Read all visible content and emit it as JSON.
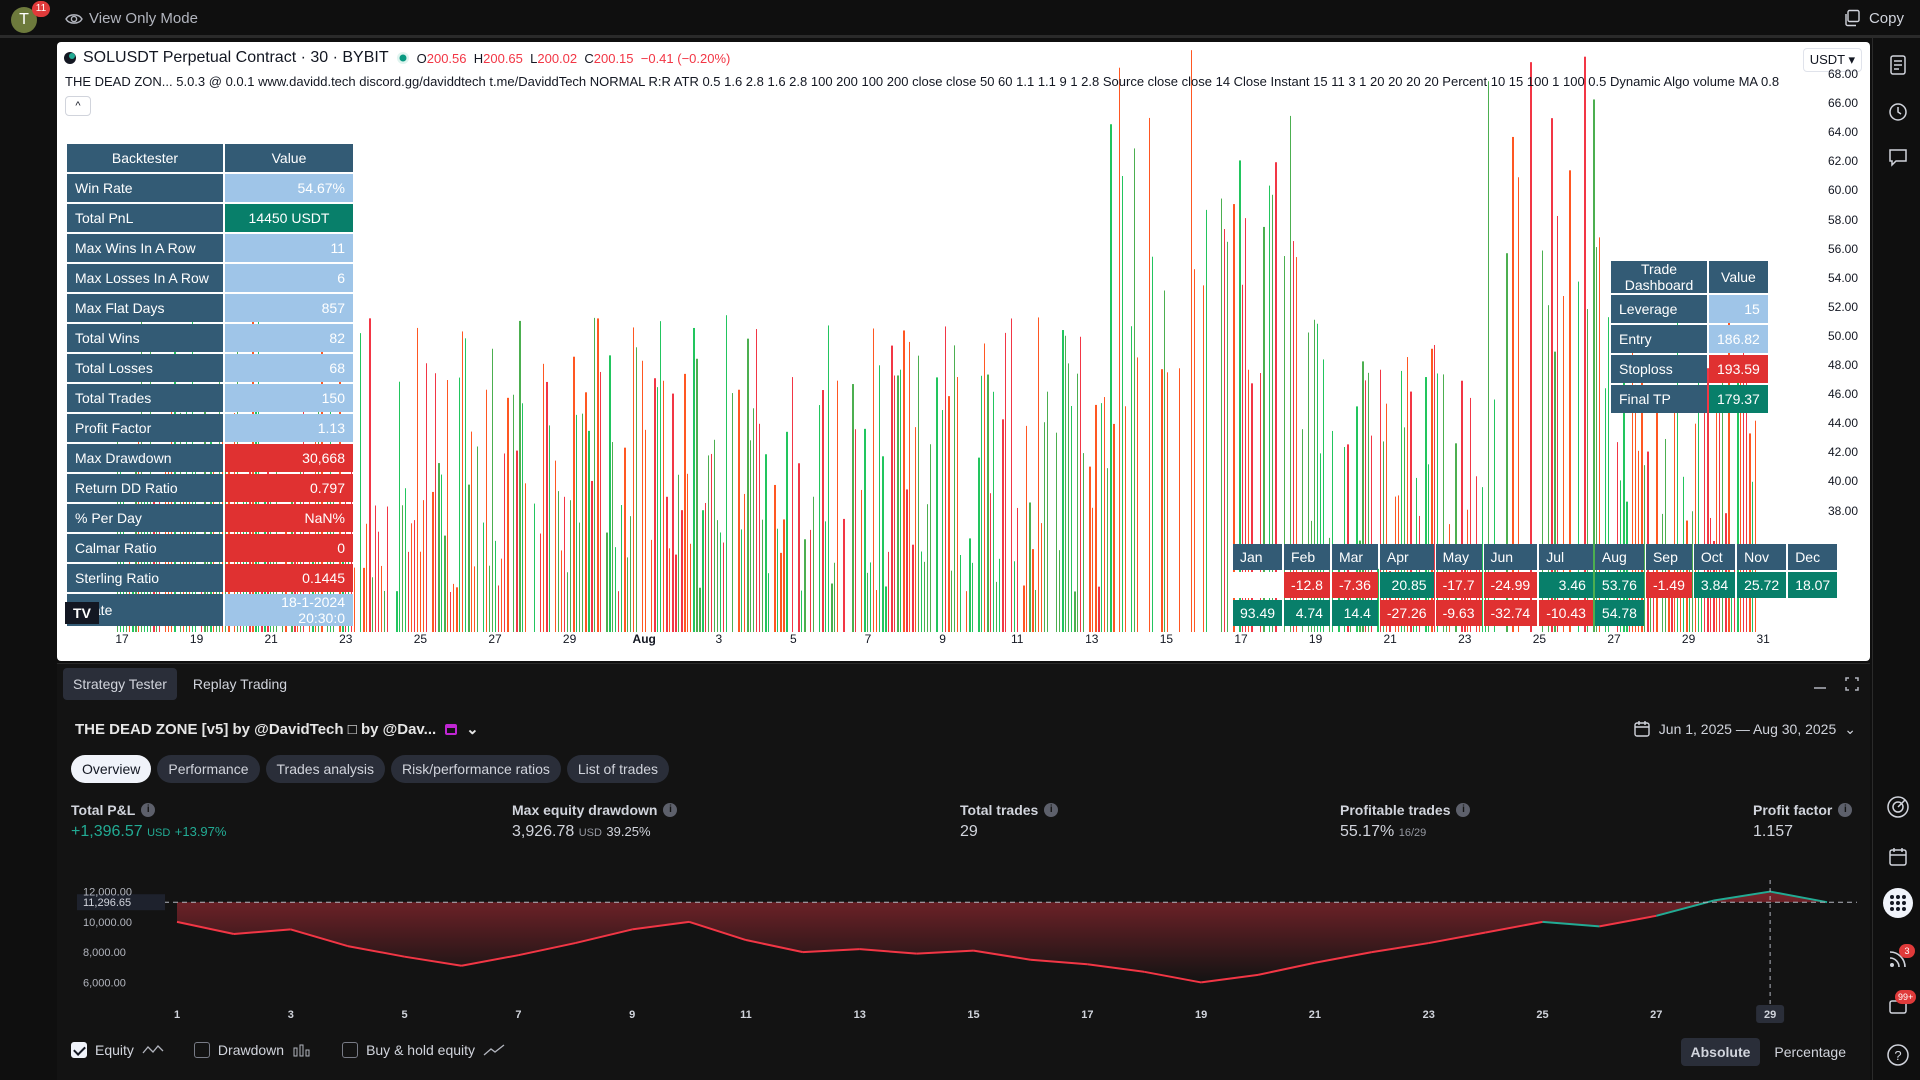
{
  "topbar": {
    "avatar_letter": "T",
    "avatar_badge": "11",
    "view_mode": "View Only Mode",
    "copy_label": "Copy"
  },
  "chart": {
    "symbol": "SOLUSDT Perpetual Contract · 30 · BYBIT",
    "ohlc": {
      "o_label": "O",
      "o": "200.56",
      "h_label": "H",
      "h": "200.65",
      "l_label": "L",
      "l": "200.02",
      "c_label": "C",
      "c": "200.15",
      "change": "−0.41 (−0.20%)"
    },
    "indicator_line": "THE DEAD ZON...    5.0.3 @ 0.0.1 www.davidd.tech discord.gg/daviddtech t.me/DaviddTech NORMAL R:R ATR 0.5 1.6 2.8 1.6 2.8 100 200 100 200 close close 50 60 1.1 1.1 9 1 2.8 Source close close 14 Close Instant 15 11 3 1 20 20 20 20 Percent 10 15 100 1 100 0.5 Dynamic Algo volume MA 0.8",
    "collapse_glyph": "^",
    "currency": "USDT",
    "y_ticks": [
      "68.00",
      "66.00",
      "64.00",
      "62.00",
      "60.00",
      "58.00",
      "56.00",
      "54.00",
      "52.00",
      "50.00",
      "48.00",
      "46.00",
      "44.00",
      "42.00",
      "40.00",
      "38.00"
    ],
    "x_ticks": [
      "17",
      "19",
      "21",
      "23",
      "25",
      "27",
      "29",
      "Aug",
      "3",
      "5",
      "7",
      "9",
      "11",
      "13",
      "15",
      "17",
      "19",
      "21",
      "23",
      "25",
      "27",
      "29",
      "31"
    ],
    "logo_text": "TV"
  },
  "backtester": {
    "headers": [
      "Backtester",
      "Value"
    ],
    "rows": [
      {
        "label": "Win Rate",
        "value": "54.67%",
        "color": "blue"
      },
      {
        "label": "Total PnL",
        "value": "14450 USDT",
        "color": "green"
      },
      {
        "label": "Max Wins In A Row",
        "value": "11",
        "color": "blue"
      },
      {
        "label": "Max Losses In A Row",
        "value": "6",
        "color": "blue"
      },
      {
        "label": "Max Flat Days",
        "value": "857",
        "color": "blue"
      },
      {
        "label": "Total Wins",
        "value": "82",
        "color": "blue"
      },
      {
        "label": "Total Losses",
        "value": "68",
        "color": "blue"
      },
      {
        "label": "Total Trades",
        "value": "150",
        "color": "blue"
      },
      {
        "label": "Profit Factor",
        "value": "1.13",
        "color": "blue"
      },
      {
        "label": "Max Drawdown",
        "value": "30,668",
        "color": "red"
      },
      {
        "label": "Return DD Ratio",
        "value": "0.797",
        "color": "red"
      },
      {
        "label": "% Per Day",
        "value": "NaN%",
        "color": "red"
      },
      {
        "label": "Calmar Ratio",
        "value": "0",
        "color": "red"
      },
      {
        "label": "Sterling Ratio",
        "value": "0.1445",
        "color": "red"
      },
      {
        "label": "t Date",
        "value": "18-1-2024 20:30:0",
        "color": "blue"
      }
    ]
  },
  "trade_dashboard": {
    "headers": [
      "Trade Dashboard",
      "Value"
    ],
    "rows": [
      {
        "label": "Leverage",
        "value": "15",
        "color": "blue"
      },
      {
        "label": "Entry",
        "value": "186.82",
        "color": "blue"
      },
      {
        "label": "Stoploss",
        "value": "193.59",
        "color": "red"
      },
      {
        "label": "Final TP",
        "value": "179.37",
        "color": "green"
      }
    ]
  },
  "monthly": {
    "months": [
      "Jan",
      "Feb",
      "Mar",
      "Apr",
      "May",
      "Jun",
      "Jul",
      "Aug",
      "Sep",
      "Oct",
      "Nov",
      "Dec"
    ],
    "row1": [
      {
        "v": "",
        "c": "white"
      },
      {
        "v": "-12.8",
        "c": "red"
      },
      {
        "v": "-7.36",
        "c": "red"
      },
      {
        "v": "20.85",
        "c": "green"
      },
      {
        "v": "-17.7",
        "c": "red"
      },
      {
        "v": "-24.99",
        "c": "red"
      },
      {
        "v": "3.46",
        "c": "green"
      },
      {
        "v": "53.76",
        "c": "green"
      },
      {
        "v": "-1.49",
        "c": "red"
      },
      {
        "v": "3.84",
        "c": "green"
      },
      {
        "v": "25.72",
        "c": "green"
      },
      {
        "v": "18.07",
        "c": "green"
      }
    ],
    "row2": [
      {
        "v": "93.49",
        "c": "green"
      },
      {
        "v": "4.74",
        "c": "green"
      },
      {
        "v": "14.4",
        "c": "green"
      },
      {
        "v": "-27.26",
        "c": "red"
      },
      {
        "v": "-9.63",
        "c": "red"
      },
      {
        "v": "-32.74",
        "c": "red"
      },
      {
        "v": "-10.43",
        "c": "red"
      },
      {
        "v": "54.78",
        "c": "green"
      }
    ]
  },
  "panel": {
    "tabs": [
      "Strategy Tester",
      "Replay Trading"
    ],
    "strategy_name": "THE DEAD ZONE [v5] by @DavidTech □ by @Dav...",
    "date_range": "Jun 1, 2025 — Aug 30, 2025",
    "subtabs": [
      "Overview",
      "Performance",
      "Trades analysis",
      "Risk/performance ratios",
      "List of trades"
    ],
    "metrics": {
      "pnl": {
        "label": "Total P&L",
        "value": "+1,396.57",
        "unit": "USD",
        "pct": "+13.97%"
      },
      "dd": {
        "label": "Max equity drawdown",
        "value": "3,926.78",
        "unit": "USD",
        "pct": "39.25%"
      },
      "trades": {
        "label": "Total trades",
        "value": "29"
      },
      "profitable": {
        "label": "Profitable trades",
        "value": "55.17%",
        "sub": "16/29"
      },
      "pf": {
        "label": "Profit factor",
        "value": "1.157"
      }
    },
    "legend": {
      "equity": "Equity",
      "drawdown": "Drawdown",
      "buyhold": "Buy & hold equity"
    },
    "toggle": {
      "absolute": "Absolute",
      "percentage": "Percentage"
    }
  },
  "equity_chart": {
    "type": "line",
    "y_ticks": [
      "12,000.00",
      "10,000.00",
      "8,000.00",
      "6,000.00"
    ],
    "baseline_label": "11,296.65",
    "x_ticks": [
      "1",
      "3",
      "5",
      "7",
      "9",
      "11",
      "13",
      "15",
      "17",
      "19",
      "21",
      "23",
      "25",
      "27",
      "29"
    ],
    "highlight_x": "29",
    "x": [
      1,
      2,
      3,
      4,
      5,
      6,
      7,
      8,
      9,
      10,
      11,
      12,
      13,
      14,
      15,
      16,
      17,
      18,
      19,
      20,
      21,
      22,
      23,
      24,
      25,
      26,
      27,
      28,
      29,
      30
    ],
    "values": [
      10000,
      9200,
      9500,
      8400,
      7700,
      7100,
      7800,
      8600,
      9500,
      10000,
      8800,
      8000,
      8200,
      7900,
      8100,
      7500,
      7200,
      6700,
      6000,
      6500,
      7300,
      8000,
      8600,
      9300,
      10000,
      9700,
      10400,
      11400,
      12000,
      11300
    ],
    "baseline": 11296.65,
    "ylim": [
      5500,
      12500
    ],
    "colors": {
      "above": "#22ab94",
      "below": "#f23645"
    }
  },
  "icons": {
    "eye": "eye-icon",
    "copy": "copy-icon",
    "calendar": "calendar-icon"
  },
  "right_badges": {
    "rss": "3",
    "notif": "99+"
  }
}
